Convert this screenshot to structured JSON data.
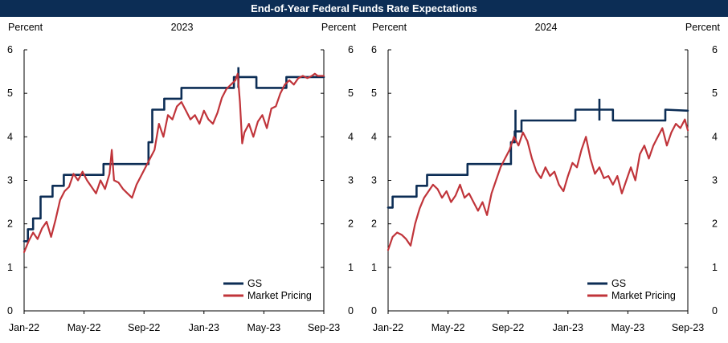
{
  "title": "End-of-Year Federal Funds Rate Expectations",
  "colors": {
    "title_bg": "#0c2d55",
    "gs": "#0c2d55",
    "market": "#c0343a"
  },
  "chart_data": [
    {
      "type": "line",
      "subtitle": "2023",
      "ylabel_left": "Percent",
      "ylabel_right": "Percent",
      "ylim": [
        0,
        6
      ],
      "yticks": [
        0,
        1,
        2,
        3,
        4,
        5,
        6
      ],
      "ytick_labels": [
        "0",
        "1",
        "2",
        "3",
        "4",
        "5",
        "6"
      ],
      "xlim": [
        0,
        20
      ],
      "xticks": [
        0,
        4,
        8,
        12,
        16,
        20
      ],
      "xtick_labels": [
        "Jan-22",
        "May-22",
        "Sep-22",
        "Jan-23",
        "May-23",
        "Sep-23"
      ],
      "legend": {
        "position": "bottom-right",
        "entries": [
          "GS",
          "Market Pricing"
        ]
      },
      "series": [
        {
          "name": "GS",
          "style": "step",
          "x": [
            0,
            0.25,
            0.25,
            0.6,
            0.6,
            1.1,
            1.1,
            1.9,
            1.9,
            2.65,
            2.65,
            4.3,
            4.3,
            5.3,
            5.3,
            8.3,
            8.3,
            8.55,
            8.55,
            9.35,
            9.35,
            10.5,
            10.5,
            14.0,
            14.0,
            14.5,
            14.5,
            15.5,
            15.5,
            17.5,
            17.5,
            20.0
          ],
          "values": [
            1.6,
            1.6,
            1.875,
            1.875,
            2.125,
            2.125,
            2.625,
            2.625,
            2.875,
            2.875,
            3.125,
            3.125,
            3.125,
            3.125,
            3.375,
            3.375,
            3.875,
            3.875,
            4.625,
            4.625,
            4.875,
            4.875,
            5.125,
            5.125,
            5.375,
            5.375,
            5.375,
            5.375,
            5.125,
            5.125,
            5.375,
            5.375
          ],
          "spikes": [
            {
              "x": 14.3,
              "values": [
                5.6,
                5.125
              ]
            }
          ]
        },
        {
          "name": "Market Pricing",
          "x": [
            0,
            0.3,
            0.6,
            0.9,
            1.2,
            1.5,
            1.8,
            2.1,
            2.4,
            2.7,
            3.0,
            3.3,
            3.6,
            3.9,
            4.2,
            4.5,
            4.8,
            5.1,
            5.4,
            5.7,
            5.85,
            6.0,
            6.3,
            6.6,
            6.9,
            7.2,
            7.5,
            7.8,
            8.1,
            8.4,
            8.7,
            9.0,
            9.3,
            9.6,
            9.9,
            10.2,
            10.5,
            10.8,
            11.1,
            11.4,
            11.7,
            12.0,
            12.3,
            12.6,
            12.9,
            13.2,
            13.5,
            13.8,
            14.1,
            14.25,
            14.4,
            14.55,
            14.7,
            15.0,
            15.3,
            15.6,
            15.9,
            16.2,
            16.5,
            16.8,
            17.1,
            17.4,
            17.7,
            18.0,
            18.3,
            18.6,
            18.9,
            19.2,
            19.4,
            19.6,
            20.0
          ],
          "values": [
            1.35,
            1.6,
            1.8,
            1.65,
            1.9,
            2.05,
            1.7,
            2.1,
            2.55,
            2.75,
            2.85,
            3.15,
            3.0,
            3.2,
            3.0,
            2.85,
            2.7,
            3.0,
            2.8,
            3.15,
            3.7,
            3.0,
            2.95,
            2.8,
            2.7,
            2.6,
            2.9,
            3.1,
            3.3,
            3.5,
            3.7,
            4.3,
            4.0,
            4.5,
            4.4,
            4.7,
            4.8,
            4.6,
            4.4,
            4.5,
            4.3,
            4.6,
            4.4,
            4.3,
            4.55,
            4.9,
            5.1,
            5.2,
            5.3,
            5.45,
            4.8,
            3.85,
            4.1,
            4.3,
            4.0,
            4.35,
            4.5,
            4.2,
            4.65,
            4.7,
            5.0,
            5.2,
            5.3,
            5.2,
            5.35,
            5.4,
            5.35,
            5.4,
            5.45,
            5.4,
            5.4
          ]
        }
      ]
    },
    {
      "type": "line",
      "subtitle": "2024",
      "ylabel_left": "Percent",
      "ylabel_right": "Percent",
      "ylim": [
        0,
        6
      ],
      "yticks": [
        0,
        1,
        2,
        3,
        4,
        5,
        6
      ],
      "ytick_labels": [
        "0",
        "1",
        "2",
        "3",
        "4",
        "5",
        "6"
      ],
      "xlim": [
        0,
        20
      ],
      "xticks": [
        0,
        4,
        8,
        12,
        16,
        20
      ],
      "xtick_labels": [
        "Jan-22",
        "May-22",
        "Sep-22",
        "Jan-23",
        "May-23",
        "Sep-23"
      ],
      "legend": {
        "position": "bottom-right",
        "entries": [
          "GS",
          "Market Pricing"
        ]
      },
      "series": [
        {
          "name": "GS",
          "style": "step",
          "x": [
            0,
            0.3,
            0.3,
            1.9,
            1.9,
            2.6,
            2.6,
            5.3,
            5.3,
            8.2,
            8.2,
            8.45,
            8.45,
            8.9,
            8.9,
            10.5,
            10.5,
            12.5,
            12.5,
            15.0,
            15.0,
            16.5,
            16.5,
            18.5,
            18.5,
            20.0
          ],
          "values": [
            2.375,
            2.375,
            2.625,
            2.625,
            2.875,
            2.875,
            3.125,
            3.125,
            3.375,
            3.375,
            3.875,
            3.875,
            4.125,
            4.125,
            4.375,
            4.375,
            4.375,
            4.375,
            4.625,
            4.625,
            4.375,
            4.375,
            4.375,
            4.375,
            4.625,
            4.6
          ],
          "spikes": [
            {
              "x": 8.5,
              "values": [
                4.62,
                3.9
              ]
            },
            {
              "x": 14.1,
              "values": [
                4.875,
                4.375
              ]
            }
          ]
        },
        {
          "name": "Market Pricing",
          "x": [
            0,
            0.3,
            0.6,
            0.9,
            1.2,
            1.5,
            1.8,
            2.1,
            2.4,
            2.7,
            3.0,
            3.3,
            3.6,
            3.9,
            4.2,
            4.5,
            4.8,
            5.1,
            5.4,
            5.7,
            6.0,
            6.3,
            6.6,
            6.9,
            7.2,
            7.5,
            7.8,
            8.1,
            8.4,
            8.7,
            9.0,
            9.3,
            9.6,
            9.9,
            10.2,
            10.5,
            10.8,
            11.1,
            11.4,
            11.7,
            12.0,
            12.3,
            12.6,
            12.9,
            13.2,
            13.5,
            13.8,
            14.1,
            14.4,
            14.7,
            15.0,
            15.3,
            15.6,
            15.9,
            16.2,
            16.5,
            16.8,
            17.1,
            17.4,
            17.7,
            18.0,
            18.3,
            18.6,
            18.9,
            19.2,
            19.5,
            19.8,
            20.0
          ],
          "values": [
            1.4,
            1.7,
            1.8,
            1.75,
            1.65,
            1.5,
            2.0,
            2.35,
            2.6,
            2.75,
            2.9,
            2.8,
            2.6,
            2.75,
            2.5,
            2.65,
            2.9,
            2.6,
            2.7,
            2.5,
            2.3,
            2.5,
            2.2,
            2.7,
            3.0,
            3.3,
            3.5,
            3.7,
            4.0,
            3.8,
            4.1,
            3.9,
            3.5,
            3.2,
            3.05,
            3.3,
            3.1,
            3.2,
            2.9,
            2.75,
            3.1,
            3.4,
            3.3,
            3.7,
            4.0,
            3.5,
            3.15,
            3.3,
            3.05,
            3.1,
            2.9,
            3.1,
            2.7,
            3.0,
            3.3,
            3.0,
            3.6,
            3.8,
            3.5,
            3.8,
            4.0,
            4.2,
            3.8,
            4.1,
            4.3,
            4.2,
            4.4,
            4.15
          ]
        }
      ]
    }
  ]
}
